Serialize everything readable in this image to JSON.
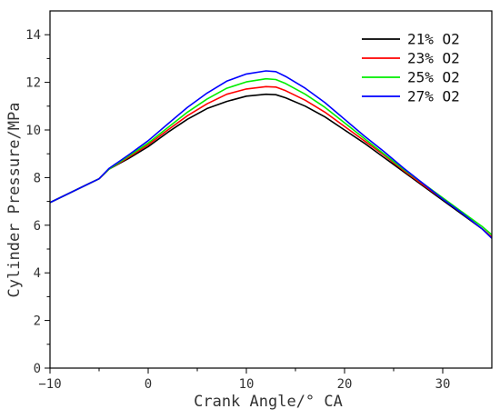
{
  "chart_data": {
    "type": "line",
    "title": "",
    "xlabel": "Crank Angle/° CA",
    "ylabel": "Cylinder Pressure/MPa",
    "xlim": [
      -10,
      35
    ],
    "ylim": [
      0,
      15
    ],
    "xticks": [
      -10,
      0,
      10,
      20,
      30
    ],
    "yticks": [
      0,
      2,
      4,
      6,
      8,
      10,
      12,
      14
    ],
    "grid": false,
    "legend_position": "top-right",
    "series": [
      {
        "name": "21% O2",
        "color": "#000000",
        "points": [
          [
            -10,
            6.95
          ],
          [
            -8,
            7.35
          ],
          [
            -6,
            7.75
          ],
          [
            -5,
            7.95
          ],
          [
            -4,
            8.35
          ],
          [
            -2,
            8.8
          ],
          [
            0,
            9.3
          ],
          [
            2,
            9.9
          ],
          [
            4,
            10.45
          ],
          [
            6,
            10.9
          ],
          [
            8,
            11.2
          ],
          [
            10,
            11.42
          ],
          [
            12,
            11.5
          ],
          [
            13,
            11.48
          ],
          [
            14,
            11.35
          ],
          [
            16,
            11.0
          ],
          [
            18,
            10.55
          ],
          [
            20,
            10.0
          ],
          [
            22,
            9.45
          ],
          [
            24,
            8.85
          ],
          [
            26,
            8.25
          ],
          [
            28,
            7.65
          ],
          [
            30,
            7.05
          ],
          [
            32,
            6.45
          ],
          [
            34,
            5.85
          ],
          [
            35,
            5.5
          ]
        ]
      },
      {
        "name": "23% O2",
        "color": "#ff0000",
        "points": [
          [
            -10,
            6.95
          ],
          [
            -8,
            7.35
          ],
          [
            -6,
            7.75
          ],
          [
            -5,
            7.95
          ],
          [
            -4,
            8.35
          ],
          [
            -2,
            8.85
          ],
          [
            0,
            9.38
          ],
          [
            2,
            10.0
          ],
          [
            4,
            10.6
          ],
          [
            6,
            11.1
          ],
          [
            8,
            11.5
          ],
          [
            10,
            11.72
          ],
          [
            12,
            11.82
          ],
          [
            13,
            11.8
          ],
          [
            14,
            11.65
          ],
          [
            16,
            11.25
          ],
          [
            18,
            10.75
          ],
          [
            20,
            10.15
          ],
          [
            22,
            9.55
          ],
          [
            24,
            8.95
          ],
          [
            26,
            8.3
          ],
          [
            28,
            7.7
          ],
          [
            30,
            7.1
          ],
          [
            32,
            6.5
          ],
          [
            34,
            5.85
          ],
          [
            35,
            5.5
          ]
        ]
      },
      {
        "name": "25% O2",
        "color": "#00ee00",
        "points": [
          [
            -10,
            6.95
          ],
          [
            -8,
            7.35
          ],
          [
            -6,
            7.75
          ],
          [
            -5,
            7.95
          ],
          [
            -4,
            8.35
          ],
          [
            -2,
            8.9
          ],
          [
            0,
            9.45
          ],
          [
            2,
            10.1
          ],
          [
            4,
            10.75
          ],
          [
            6,
            11.3
          ],
          [
            8,
            11.75
          ],
          [
            10,
            12.02
          ],
          [
            12,
            12.15
          ],
          [
            13,
            12.12
          ],
          [
            14,
            11.95
          ],
          [
            16,
            11.5
          ],
          [
            18,
            10.95
          ],
          [
            20,
            10.3
          ],
          [
            22,
            9.65
          ],
          [
            24,
            9.0
          ],
          [
            26,
            8.35
          ],
          [
            28,
            7.75
          ],
          [
            30,
            7.15
          ],
          [
            32,
            6.55
          ],
          [
            34,
            5.95
          ],
          [
            35,
            5.6
          ]
        ]
      },
      {
        "name": "27% O2",
        "color": "#0000ff",
        "points": [
          [
            -10,
            6.95
          ],
          [
            -8,
            7.35
          ],
          [
            -6,
            7.75
          ],
          [
            -5,
            7.95
          ],
          [
            -4,
            8.38
          ],
          [
            -2,
            8.95
          ],
          [
            0,
            9.55
          ],
          [
            2,
            10.25
          ],
          [
            4,
            10.95
          ],
          [
            6,
            11.55
          ],
          [
            8,
            12.05
          ],
          [
            10,
            12.35
          ],
          [
            12,
            12.48
          ],
          [
            13,
            12.45
          ],
          [
            14,
            12.25
          ],
          [
            16,
            11.75
          ],
          [
            18,
            11.15
          ],
          [
            20,
            10.45
          ],
          [
            22,
            9.75
          ],
          [
            24,
            9.1
          ],
          [
            26,
            8.4
          ],
          [
            28,
            7.75
          ],
          [
            30,
            7.1
          ],
          [
            32,
            6.5
          ],
          [
            34,
            5.85
          ],
          [
            35,
            5.45
          ]
        ]
      }
    ]
  }
}
